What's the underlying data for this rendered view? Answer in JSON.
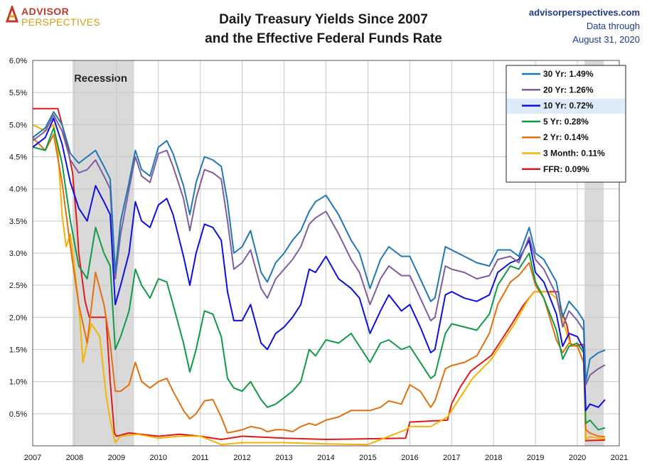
{
  "header": {
    "logo_line1": "ADVISOR",
    "logo_line2": "PERSPECTIVES",
    "title_line1": "Daily Treasury Yields Since 2007",
    "title_line2": "and the Effective Federal Funds Rate",
    "site_url": "advisorperspectives.com",
    "data_through_label": "Data through",
    "data_through_date": "August 31, 2020"
  },
  "chart_data": {
    "type": "line",
    "title": "Daily Treasury Yields Since 2007 and the Effective Federal Funds Rate",
    "xlabel": "",
    "ylabel": "",
    "xlim": [
      2007,
      2021
    ],
    "ylim": [
      0,
      6
    ],
    "x_ticks": [
      "2007",
      "2008",
      "2009",
      "2010",
      "2011",
      "2012",
      "2013",
      "2014",
      "2015",
      "2016",
      "2017",
      "2018",
      "2019",
      "2020",
      "2021"
    ],
    "y_ticks": [
      "0.5%",
      "1.0%",
      "1.5%",
      "2.0%",
      "2.5%",
      "3.0%",
      "3.5%",
      "4.0%",
      "4.5%",
      "5.0%",
      "5.5%",
      "6.0%"
    ],
    "grid": true,
    "legend_position": "top-right",
    "highlighted_series": "10 Yr: 0.72%",
    "recessions": [
      {
        "label": "Recession",
        "start": 2007.95,
        "end": 2009.42
      },
      {
        "label": "",
        "start": 2020.17,
        "end": 2020.63
      }
    ],
    "series": [
      {
        "name": "30 Yr: 1.49%",
        "color": "#1f77b4",
        "x": [
          2007.0,
          2007.3,
          2007.5,
          2007.7,
          2007.9,
          2008.1,
          2008.3,
          2008.5,
          2008.7,
          2008.85,
          2008.97,
          2009.1,
          2009.3,
          2009.45,
          2009.6,
          2009.8,
          2010.0,
          2010.2,
          2010.35,
          2010.6,
          2010.75,
          2010.9,
          2011.1,
          2011.3,
          2011.5,
          2011.65,
          2011.8,
          2012.0,
          2012.2,
          2012.45,
          2012.6,
          2012.8,
          2013.0,
          2013.2,
          2013.4,
          2013.6,
          2013.75,
          2014.0,
          2014.3,
          2014.6,
          2014.8,
          2015.05,
          2015.3,
          2015.5,
          2015.8,
          2016.0,
          2016.25,
          2016.5,
          2016.6,
          2016.85,
          2017.0,
          2017.3,
          2017.6,
          2017.9,
          2018.1,
          2018.4,
          2018.6,
          2018.85,
          2019.0,
          2019.2,
          2019.5,
          2019.65,
          2019.8,
          2020.0,
          2020.15,
          2020.2,
          2020.3,
          2020.5,
          2020.66
        ],
        "y": [
          4.8,
          4.95,
          5.2,
          5.0,
          4.55,
          4.4,
          4.5,
          4.6,
          4.35,
          4.15,
          2.7,
          3.5,
          4.1,
          4.6,
          4.3,
          4.2,
          4.65,
          4.75,
          4.55,
          4.05,
          3.6,
          4.1,
          4.5,
          4.45,
          4.35,
          3.8,
          3.0,
          3.1,
          3.35,
          2.7,
          2.55,
          2.85,
          3.0,
          3.2,
          3.35,
          3.65,
          3.8,
          3.9,
          3.6,
          3.2,
          3.0,
          2.45,
          2.9,
          3.1,
          2.95,
          2.95,
          2.6,
          2.25,
          2.3,
          3.1,
          3.05,
          2.95,
          2.85,
          2.8,
          3.05,
          3.05,
          2.95,
          3.4,
          3.0,
          2.9,
          2.55,
          2.0,
          2.25,
          2.1,
          1.95,
          1.0,
          1.35,
          1.45,
          1.49
        ]
      },
      {
        "name": "20 Yr: 1.26%",
        "color": "#7e5d9e",
        "x": [
          2007.0,
          2007.3,
          2007.5,
          2007.7,
          2007.9,
          2008.1,
          2008.3,
          2008.5,
          2008.7,
          2008.85,
          2008.97,
          2009.1,
          2009.3,
          2009.45,
          2009.6,
          2009.8,
          2010.0,
          2010.2,
          2010.35,
          2010.6,
          2010.75,
          2010.9,
          2011.1,
          2011.3,
          2011.5,
          2011.65,
          2011.8,
          2012.0,
          2012.2,
          2012.45,
          2012.6,
          2012.8,
          2013.0,
          2013.2,
          2013.4,
          2013.6,
          2013.75,
          2014.0,
          2014.3,
          2014.6,
          2014.8,
          2015.05,
          2015.3,
          2015.5,
          2015.8,
          2016.0,
          2016.25,
          2016.5,
          2016.6,
          2016.85,
          2017.0,
          2017.3,
          2017.6,
          2017.9,
          2018.1,
          2018.4,
          2018.6,
          2018.85,
          2019.0,
          2019.2,
          2019.5,
          2019.65,
          2019.8,
          2020.0,
          2020.15,
          2020.2,
          2020.3,
          2020.5,
          2020.66
        ],
        "y": [
          4.75,
          4.9,
          5.15,
          4.9,
          4.45,
          4.25,
          4.3,
          4.45,
          4.2,
          4.0,
          2.6,
          3.3,
          4.0,
          4.5,
          4.2,
          4.1,
          4.55,
          4.6,
          4.35,
          3.85,
          3.35,
          3.85,
          4.3,
          4.25,
          4.15,
          3.5,
          2.75,
          2.85,
          3.05,
          2.45,
          2.3,
          2.6,
          2.75,
          2.9,
          3.1,
          3.45,
          3.55,
          3.65,
          3.3,
          2.9,
          2.7,
          2.2,
          2.6,
          2.8,
          2.65,
          2.65,
          2.3,
          1.95,
          2.0,
          2.8,
          2.75,
          2.7,
          2.6,
          2.65,
          2.9,
          2.95,
          2.85,
          3.25,
          2.9,
          2.75,
          2.35,
          1.85,
          2.1,
          1.95,
          1.8,
          0.95,
          1.1,
          1.2,
          1.26
        ]
      },
      {
        "name": "10 Yr: 0.72%",
        "color": "#1010dd",
        "x": [
          2007.0,
          2007.3,
          2007.5,
          2007.7,
          2007.9,
          2008.1,
          2008.3,
          2008.5,
          2008.7,
          2008.85,
          2008.97,
          2009.1,
          2009.3,
          2009.45,
          2009.6,
          2009.8,
          2010.0,
          2010.2,
          2010.35,
          2010.6,
          2010.75,
          2010.9,
          2011.1,
          2011.3,
          2011.5,
          2011.65,
          2011.8,
          2012.0,
          2012.2,
          2012.45,
          2012.6,
          2012.8,
          2013.0,
          2013.2,
          2013.4,
          2013.6,
          2013.75,
          2014.0,
          2014.3,
          2014.6,
          2014.8,
          2015.05,
          2015.3,
          2015.5,
          2015.8,
          2016.0,
          2016.25,
          2016.5,
          2016.6,
          2016.85,
          2017.0,
          2017.3,
          2017.6,
          2017.9,
          2018.1,
          2018.4,
          2018.6,
          2018.85,
          2019.0,
          2019.2,
          2019.5,
          2019.65,
          2019.8,
          2020.0,
          2020.15,
          2020.2,
          2020.3,
          2020.5,
          2020.66
        ],
        "y": [
          4.65,
          4.8,
          5.1,
          4.7,
          4.1,
          3.7,
          3.5,
          4.05,
          3.8,
          3.6,
          2.2,
          2.5,
          3.0,
          3.8,
          3.5,
          3.4,
          3.75,
          3.85,
          3.6,
          2.95,
          2.5,
          3.0,
          3.45,
          3.4,
          3.2,
          2.4,
          1.95,
          1.95,
          2.2,
          1.6,
          1.5,
          1.75,
          1.85,
          2.0,
          2.2,
          2.75,
          2.7,
          2.95,
          2.6,
          2.45,
          2.3,
          1.75,
          2.1,
          2.35,
          2.1,
          2.2,
          1.85,
          1.45,
          1.5,
          2.35,
          2.4,
          2.3,
          2.25,
          2.35,
          2.7,
          2.85,
          2.9,
          3.2,
          2.7,
          2.55,
          2.05,
          1.55,
          1.75,
          1.7,
          1.5,
          0.55,
          0.65,
          0.6,
          0.72
        ]
      },
      {
        "name": "5 Yr: 0.28%",
        "color": "#109a47",
        "x": [
          2007.0,
          2007.3,
          2007.5,
          2007.7,
          2007.9,
          2008.1,
          2008.3,
          2008.5,
          2008.7,
          2008.85,
          2008.97,
          2009.1,
          2009.3,
          2009.45,
          2009.6,
          2009.8,
          2010.0,
          2010.2,
          2010.35,
          2010.6,
          2010.75,
          2010.9,
          2011.1,
          2011.3,
          2011.5,
          2011.65,
          2011.8,
          2012.0,
          2012.2,
          2012.45,
          2012.6,
          2012.8,
          2013.0,
          2013.2,
          2013.4,
          2013.6,
          2013.75,
          2014.0,
          2014.3,
          2014.6,
          2014.8,
          2015.05,
          2015.3,
          2015.5,
          2015.8,
          2016.0,
          2016.25,
          2016.5,
          2016.6,
          2016.85,
          2017.0,
          2017.3,
          2017.6,
          2017.9,
          2018.1,
          2018.4,
          2018.6,
          2018.85,
          2019.0,
          2019.2,
          2019.5,
          2019.65,
          2019.8,
          2020.0,
          2020.15,
          2020.2,
          2020.3,
          2020.5,
          2020.66
        ],
        "y": [
          4.65,
          4.6,
          4.95,
          4.4,
          3.5,
          2.8,
          2.6,
          3.4,
          3.0,
          2.8,
          1.5,
          1.7,
          2.1,
          2.75,
          2.5,
          2.3,
          2.6,
          2.55,
          2.2,
          1.6,
          1.15,
          1.5,
          2.1,
          2.05,
          1.7,
          1.05,
          0.9,
          0.85,
          1.0,
          0.72,
          0.6,
          0.65,
          0.75,
          0.85,
          1.0,
          1.5,
          1.4,
          1.65,
          1.6,
          1.75,
          1.55,
          1.3,
          1.6,
          1.65,
          1.5,
          1.55,
          1.3,
          1.05,
          1.1,
          1.75,
          1.9,
          1.85,
          1.8,
          2.05,
          2.5,
          2.8,
          2.75,
          3.0,
          2.55,
          2.3,
          1.8,
          1.35,
          1.55,
          1.6,
          1.45,
          0.35,
          0.4,
          0.25,
          0.28
        ]
      },
      {
        "name": "2 Yr: 0.14%",
        "color": "#e07010",
        "x": [
          2007.0,
          2007.3,
          2007.5,
          2007.7,
          2007.9,
          2008.1,
          2008.3,
          2008.5,
          2008.7,
          2008.85,
          2008.97,
          2009.1,
          2009.3,
          2009.45,
          2009.6,
          2009.8,
          2010.0,
          2010.2,
          2010.35,
          2010.6,
          2010.75,
          2010.9,
          2011.1,
          2011.3,
          2011.5,
          2011.65,
          2011.8,
          2012.0,
          2012.2,
          2012.45,
          2012.6,
          2012.8,
          2013.0,
          2013.2,
          2013.4,
          2013.6,
          2013.75,
          2014.0,
          2014.3,
          2014.6,
          2014.8,
          2015.05,
          2015.3,
          2015.5,
          2015.8,
          2016.0,
          2016.25,
          2016.5,
          2016.6,
          2016.85,
          2017.0,
          2017.3,
          2017.6,
          2017.9,
          2018.1,
          2018.4,
          2018.6,
          2018.85,
          2019.0,
          2019.2,
          2019.5,
          2019.65,
          2019.8,
          2020.0,
          2020.15,
          2020.2,
          2020.3,
          2020.5,
          2020.66
        ],
        "y": [
          4.8,
          4.6,
          4.85,
          4.1,
          3.1,
          2.2,
          1.6,
          2.7,
          2.2,
          1.6,
          0.85,
          0.85,
          0.95,
          1.3,
          1.0,
          0.9,
          1.0,
          1.05,
          0.85,
          0.55,
          0.42,
          0.5,
          0.7,
          0.72,
          0.45,
          0.2,
          0.22,
          0.25,
          0.3,
          0.27,
          0.22,
          0.25,
          0.25,
          0.22,
          0.3,
          0.35,
          0.32,
          0.4,
          0.45,
          0.55,
          0.55,
          0.55,
          0.6,
          0.7,
          0.65,
          0.95,
          0.85,
          0.6,
          0.7,
          1.2,
          1.25,
          1.3,
          1.4,
          1.75,
          2.2,
          2.55,
          2.65,
          2.85,
          2.5,
          2.3,
          1.65,
          1.45,
          1.6,
          1.55,
          1.3,
          0.25,
          0.2,
          0.15,
          0.14
        ]
      },
      {
        "name": "3 Month: 0.11%",
        "color": "#f4b400",
        "x": [
          2007.0,
          2007.3,
          2007.5,
          2007.6,
          2007.7,
          2007.8,
          2007.9,
          2008.1,
          2008.2,
          2008.4,
          2008.6,
          2008.75,
          2008.85,
          2008.97,
          2009.1,
          2009.5,
          2010.0,
          2010.5,
          2011.0,
          2011.5,
          2012.0,
          2013.0,
          2014.0,
          2015.0,
          2015.9,
          2016.0,
          2016.5,
          2016.9,
          2017.0,
          2017.25,
          2017.5,
          2017.95,
          2018.2,
          2018.5,
          2018.8,
          2018.97,
          2019.3,
          2019.5,
          2019.65,
          2019.85,
          2020.0,
          2020.15,
          2020.2,
          2020.3,
          2020.5,
          2020.66
        ],
        "y": [
          5.0,
          4.9,
          5.0,
          4.6,
          3.6,
          3.1,
          3.3,
          2.2,
          1.3,
          1.9,
          1.7,
          0.8,
          0.4,
          0.05,
          0.15,
          0.18,
          0.12,
          0.15,
          0.15,
          0.02,
          0.05,
          0.05,
          0.03,
          0.02,
          0.25,
          0.3,
          0.3,
          0.45,
          0.55,
          0.8,
          1.05,
          1.35,
          1.6,
          1.9,
          2.25,
          2.4,
          2.4,
          2.3,
          1.95,
          1.55,
          1.55,
          1.3,
          0.1,
          0.14,
          0.12,
          0.11
        ]
      },
      {
        "name": "FFR: 0.09%",
        "color": "#e01a1a",
        "x": [
          2007.0,
          2007.6,
          2007.7,
          2007.8,
          2007.95,
          2008.05,
          2008.1,
          2008.25,
          2008.35,
          2008.75,
          2008.8,
          2008.85,
          2008.95,
          2009.0,
          2009.3,
          2010.0,
          2010.5,
          2011.0,
          2011.5,
          2012.0,
          2013.0,
          2014.0,
          2015.9,
          2016.0,
          2016.9,
          2017.0,
          2017.2,
          2017.45,
          2017.95,
          2018.2,
          2018.45,
          2018.7,
          2018.97,
          2019.55,
          2019.6,
          2019.75,
          2019.85,
          2020.15,
          2020.2,
          2020.66
        ],
        "y": [
          5.25,
          5.25,
          5.0,
          4.75,
          4.25,
          3.5,
          3.0,
          2.25,
          2.0,
          2.0,
          1.5,
          1.0,
          0.2,
          0.15,
          0.2,
          0.15,
          0.18,
          0.15,
          0.1,
          0.15,
          0.12,
          0.1,
          0.12,
          0.37,
          0.4,
          0.66,
          0.91,
          1.16,
          1.41,
          1.66,
          1.91,
          2.18,
          2.4,
          2.4,
          2.13,
          1.88,
          1.55,
          1.58,
          0.08,
          0.09
        ]
      }
    ]
  }
}
